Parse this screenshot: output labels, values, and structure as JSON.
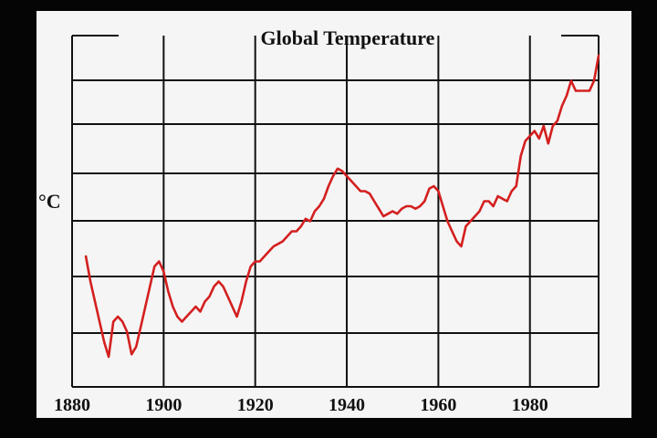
{
  "chart_data": {
    "type": "line",
    "title": "Global Temperature",
    "xlabel": "",
    "ylabel": "°C",
    "xlim": [
      1880,
      1995
    ],
    "ylim": [
      0,
      7
    ],
    "x_ticks": [
      1880,
      1900,
      1920,
      1940,
      1960,
      1980
    ],
    "grid": true,
    "line_color": "#d41f1f",
    "series": [
      {
        "x": [
          1883,
          1884,
          1885,
          1886,
          1887,
          1888,
          1889,
          1890,
          1891,
          1892,
          1893,
          1894,
          1895,
          1896,
          1897,
          1898,
          1899,
          1900,
          1901,
          1902,
          1903,
          1904,
          1905,
          1906,
          1907,
          1908,
          1909,
          1910,
          1911,
          1912,
          1913,
          1914,
          1915,
          1916,
          1917,
          1918,
          1919,
          1920,
          1921,
          1922,
          1923,
          1924,
          1925,
          1926,
          1927,
          1928,
          1929,
          1930,
          1931,
          1932,
          1933,
          1934,
          1935,
          1936,
          1937,
          1938,
          1939,
          1940,
          1941,
          1942,
          1943,
          1944,
          1945,
          1946,
          1947,
          1948,
          1949,
          1950,
          1951,
          1952,
          1953,
          1954,
          1955,
          1956,
          1957,
          1958,
          1959,
          1960,
          1961,
          1962,
          1963,
          1964,
          1965,
          1966,
          1967,
          1968,
          1969,
          1970,
          1971,
          1972,
          1973,
          1974,
          1975,
          1976,
          1977,
          1978,
          1979,
          1980,
          1981,
          1982,
          1983,
          1984,
          1985,
          1986,
          1987,
          1988,
          1989,
          1990,
          1991,
          1992,
          1993,
          1994,
          1995
        ],
        "values": [
          2.6,
          2.1,
          1.7,
          1.3,
          0.9,
          0.6,
          1.3,
          1.4,
          1.3,
          1.1,
          0.65,
          0.8,
          1.2,
          1.6,
          2.0,
          2.4,
          2.5,
          2.3,
          1.9,
          1.6,
          1.4,
          1.3,
          1.4,
          1.5,
          1.6,
          1.5,
          1.7,
          1.8,
          2.0,
          2.1,
          2.0,
          1.8,
          1.6,
          1.4,
          1.7,
          2.1,
          2.4,
          2.5,
          2.5,
          2.6,
          2.7,
          2.8,
          2.85,
          2.9,
          3.0,
          3.1,
          3.1,
          3.2,
          3.35,
          3.3,
          3.5,
          3.6,
          3.75,
          4.0,
          4.2,
          4.35,
          4.3,
          4.2,
          4.1,
          4.0,
          3.9,
          3.9,
          3.85,
          3.7,
          3.55,
          3.4,
          3.45,
          3.5,
          3.45,
          3.55,
          3.6,
          3.6,
          3.55,
          3.6,
          3.7,
          3.95,
          4.0,
          3.9,
          3.6,
          3.3,
          3.1,
          2.9,
          2.8,
          3.2,
          3.3,
          3.4,
          3.5,
          3.7,
          3.7,
          3.6,
          3.8,
          3.75,
          3.7,
          3.9,
          4.0,
          4.6,
          4.9,
          5.0,
          5.1,
          4.95,
          5.2,
          4.85,
          5.2,
          5.3,
          5.6,
          5.8,
          6.1,
          5.9,
          5.9,
          5.9,
          5.9,
          6.1,
          6.6
        ]
      }
    ]
  }
}
